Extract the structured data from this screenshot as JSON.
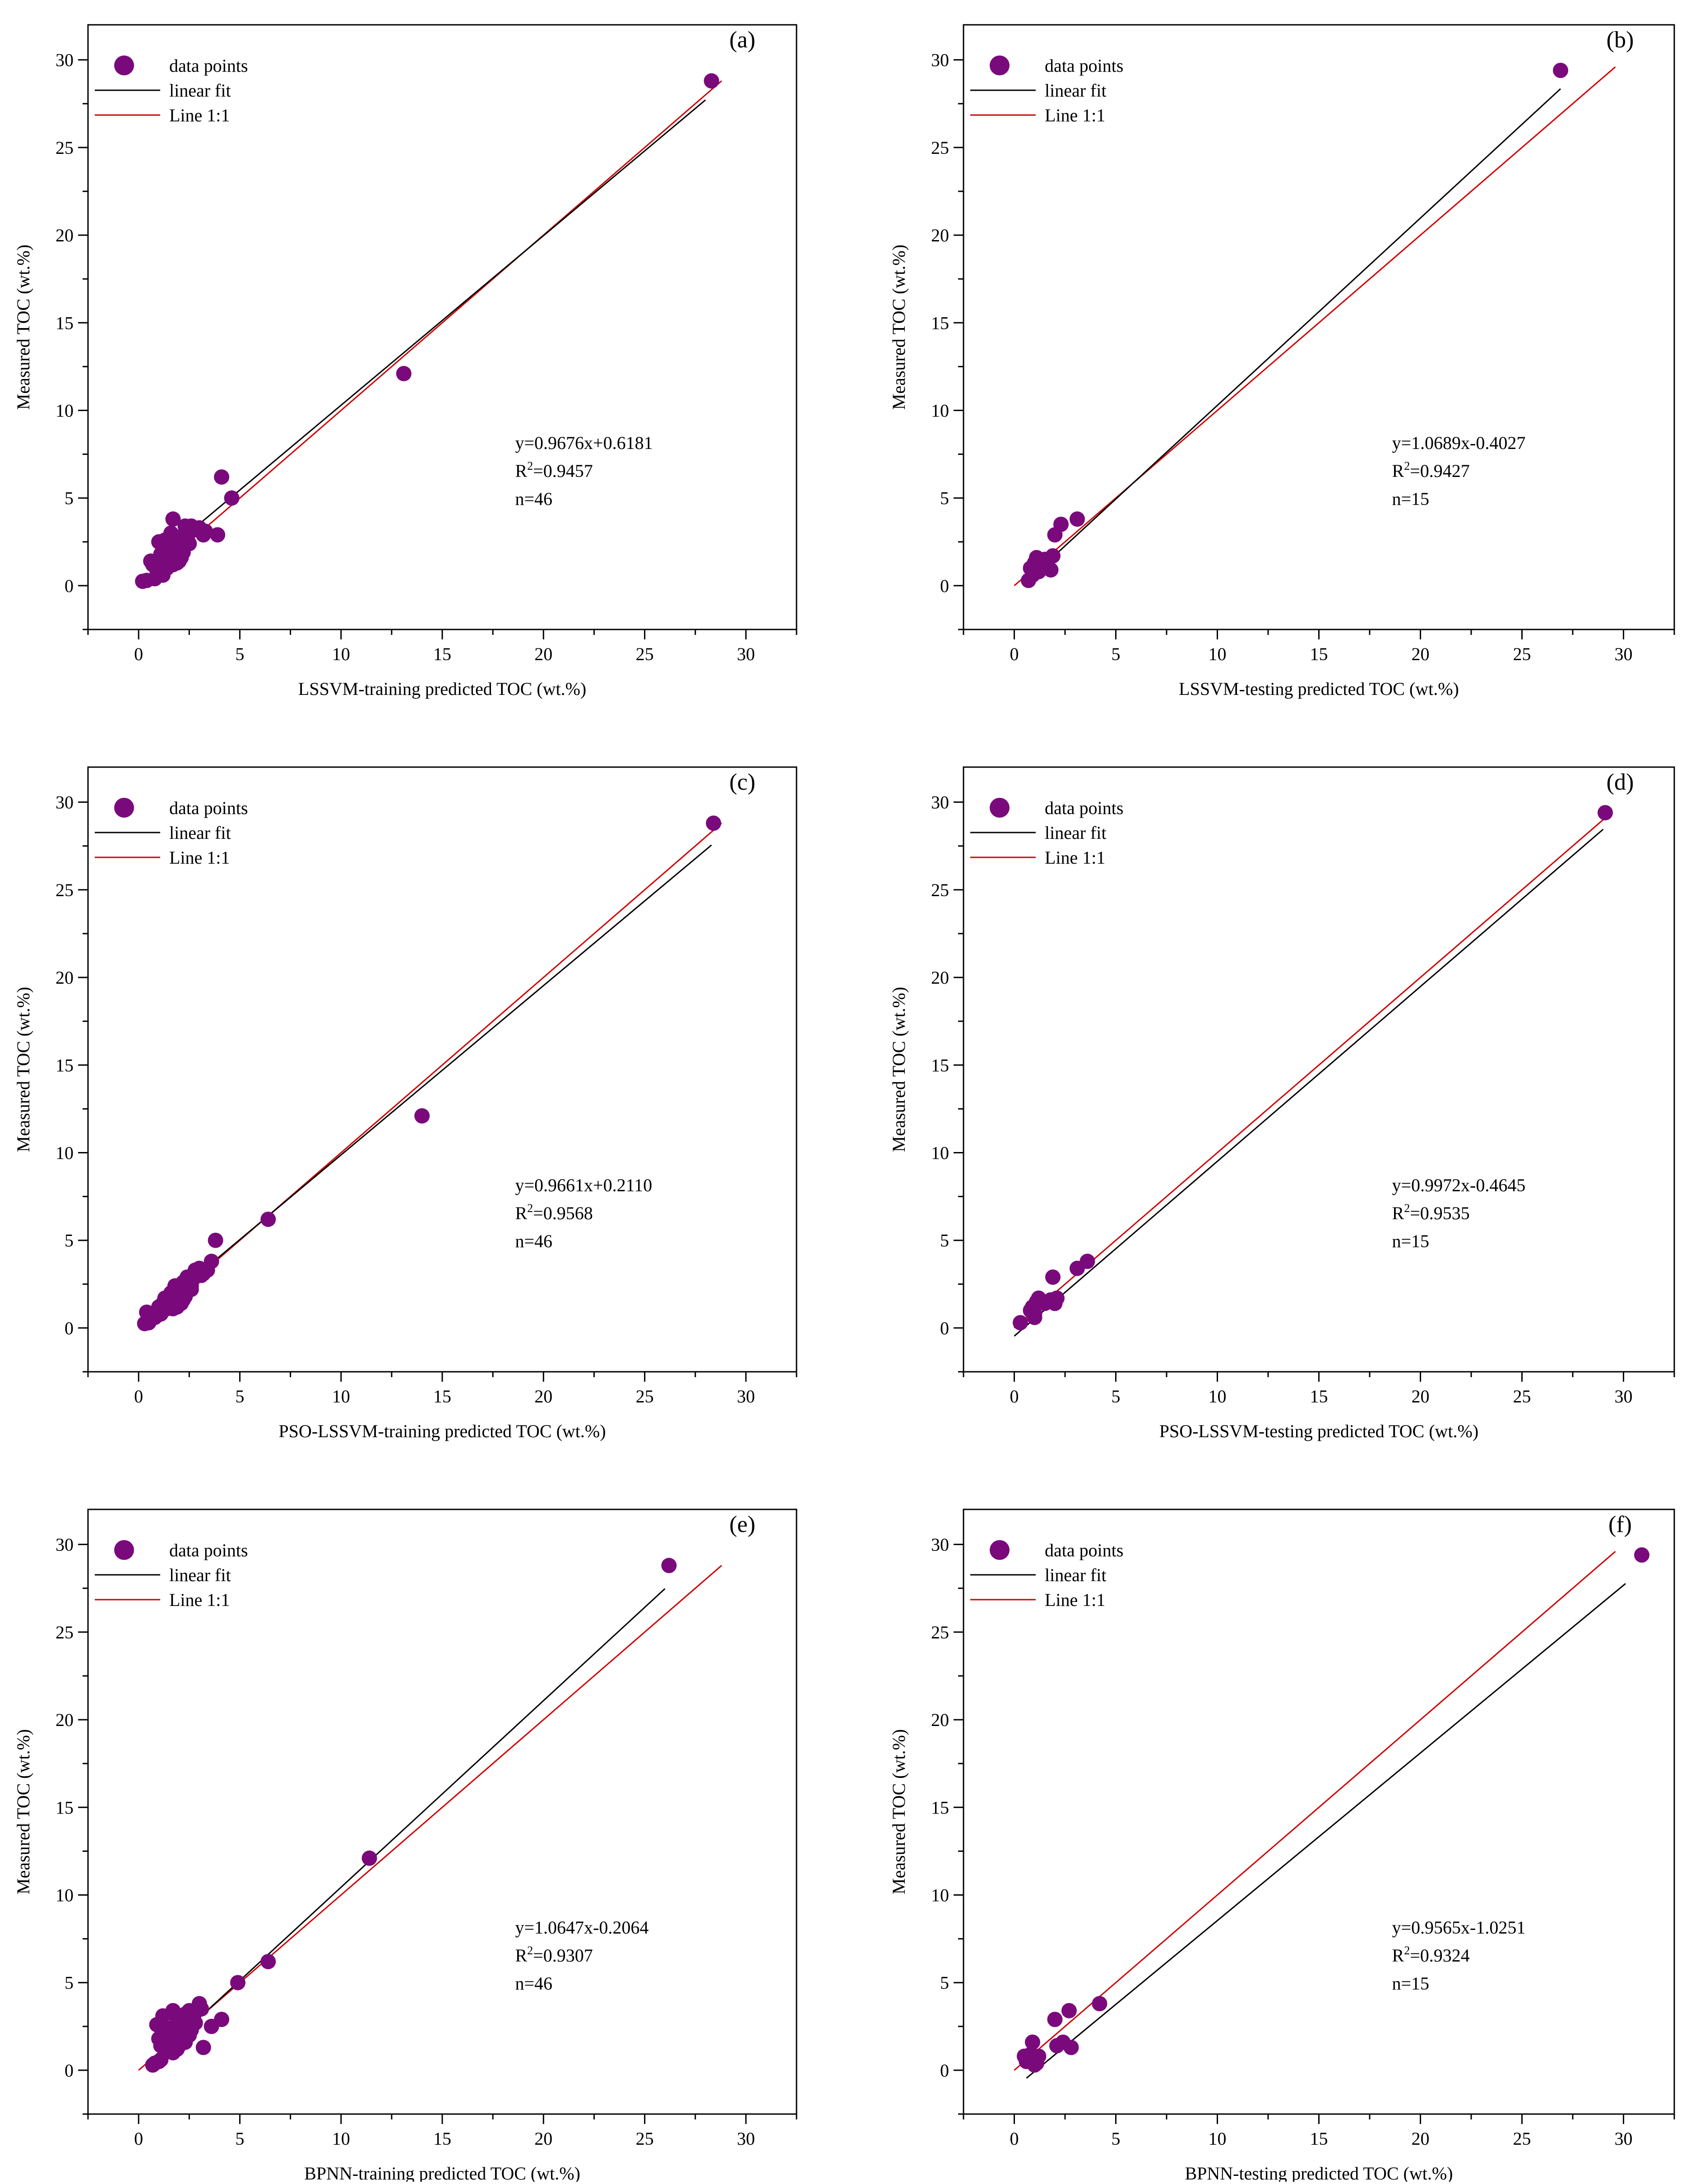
{
  "figure_title": "",
  "legend_labels": {
    "points": "data points",
    "fit": "linear fit",
    "one_to_one": "Line 1:1"
  },
  "colors": {
    "points": "#7a0a7c",
    "fit": "#000000",
    "one_to_one": "#d00000",
    "axis": "#000000",
    "background": "#ffffff"
  },
  "chart_data": [
    {
      "id": "a",
      "tag": "(a)",
      "type": "scatter",
      "title": "",
      "xlabel": "LSSVM-training predicted TOC (wt.%)",
      "ylabel": "Measured TOC (wt.%)",
      "xlim": [
        -2.5,
        32.5
      ],
      "ylim": [
        -2.5,
        32
      ],
      "xticks": [
        0,
        5,
        10,
        15,
        20,
        25,
        30
      ],
      "yticks": [
        0,
        5,
        10,
        15,
        20,
        25,
        30
      ],
      "fit": {
        "slope": 0.9676,
        "intercept": 0.6181,
        "x_range": [
          0.5,
          28.0
        ]
      },
      "one_to_one_range": [
        0,
        28.8
      ],
      "stats": {
        "equation": "y=0.9676x+0.6181",
        "r2_prefix": "R",
        "r2_sup": "2",
        "r2_value": "=0.9457",
        "n": "n=46"
      },
      "points": {
        "x": [
          0.2,
          0.4,
          0.6,
          0.8,
          0.9,
          1.0,
          1.1,
          1.2,
          1.3,
          1.4,
          1.5,
          1.6,
          1.7,
          1.8,
          1.9,
          2.0,
          2.1,
          2.2,
          2.4,
          2.6,
          2.8,
          3.0,
          3.2,
          3.3,
          3.9,
          4.1,
          4.6,
          13.1,
          28.3,
          1.0,
          1.2,
          1.4,
          1.6,
          1.8,
          2.0,
          0.7,
          0.9,
          1.1,
          1.3,
          1.5,
          1.7,
          2.3,
          2.5,
          2.7,
          1.9,
          2.1
        ],
        "y": [
          0.25,
          0.3,
          1.4,
          0.4,
          1.2,
          2.5,
          1.8,
          0.6,
          2.6,
          1.0,
          2.4,
          3.0,
          3.8,
          2.1,
          1.3,
          2.3,
          1.6,
          1.9,
          2.7,
          3.4,
          3.2,
          3.3,
          2.9,
          3.1,
          2.9,
          6.2,
          5.0,
          12.1,
          28.8,
          1.5,
          2.2,
          1.1,
          1.7,
          2.8,
          1.4,
          1.2,
          0.9,
          1.6,
          2.0,
          1.9,
          1.2,
          3.4,
          2.4,
          3.3,
          2.0,
          1.8
        ]
      }
    },
    {
      "id": "b",
      "tag": "(b)",
      "type": "scatter",
      "title": "",
      "xlabel": "LSSVM-testing predicted TOC (wt.%)",
      "ylabel": "Measured TOC (wt.%)",
      "xlim": [
        -2.5,
        32.5
      ],
      "ylim": [
        -2.5,
        32
      ],
      "xticks": [
        0,
        5,
        10,
        15,
        20,
        25,
        30
      ],
      "yticks": [
        0,
        5,
        10,
        15,
        20,
        25,
        30
      ],
      "fit": {
        "slope": 1.0689,
        "intercept": -0.4027,
        "x_range": [
          0.6,
          26.9
        ]
      },
      "one_to_one_range": [
        0,
        29.6
      ],
      "stats": {
        "equation": "y=1.0689x-0.4027",
        "r2_prefix": "R",
        "r2_sup": "2",
        "r2_value": "=0.9427",
        "n": "n=15"
      },
      "points": {
        "x": [
          0.7,
          0.8,
          0.9,
          1.0,
          1.1,
          1.2,
          1.3,
          1.5,
          1.8,
          1.9,
          2.0,
          2.3,
          3.1,
          1.2,
          26.9
        ],
        "y": [
          0.3,
          1.0,
          0.6,
          1.3,
          1.6,
          0.8,
          1.2,
          1.5,
          0.9,
          1.7,
          2.9,
          3.5,
          3.8,
          1.4,
          29.4
        ]
      }
    },
    {
      "id": "c",
      "tag": "(c)",
      "type": "scatter",
      "title": "",
      "xlabel": "PSO-LSSVM-training predicted TOC (wt.%)",
      "ylabel": "Measured TOC (wt.%)",
      "xlim": [
        -2.5,
        32.5
      ],
      "ylim": [
        -2.5,
        32
      ],
      "xticks": [
        0,
        5,
        10,
        15,
        20,
        25,
        30
      ],
      "yticks": [
        0,
        5,
        10,
        15,
        20,
        25,
        30
      ],
      "fit": {
        "slope": 0.9661,
        "intercept": 0.211,
        "x_range": [
          0.8,
          28.3
        ]
      },
      "one_to_one_range": [
        0,
        28.8
      ],
      "stats": {
        "equation": "y=0.9661x+0.2110",
        "r2_prefix": "R",
        "r2_sup": "2",
        "r2_value": "=0.9568",
        "n": "n=46"
      },
      "points": {
        "x": [
          0.3,
          0.4,
          0.5,
          0.8,
          1.0,
          1.1,
          1.2,
          1.3,
          1.4,
          1.5,
          1.6,
          1.7,
          1.8,
          1.9,
          2.0,
          2.1,
          2.2,
          2.3,
          2.4,
          2.5,
          2.6,
          2.8,
          3.0,
          3.2,
          3.4,
          3.6,
          3.8,
          6.4,
          14.0,
          28.4,
          1.2,
          1.5,
          1.8,
          2.1,
          2.4,
          1.9,
          2.2,
          2.6,
          0.9,
          1.3,
          1.7,
          2.0,
          2.3,
          2.7,
          3.1,
          1.0
        ],
        "y": [
          0.25,
          0.9,
          0.3,
          0.6,
          1.2,
          0.8,
          1.4,
          1.7,
          1.1,
          1.5,
          2.0,
          1.3,
          2.4,
          1.6,
          2.1,
          1.4,
          2.6,
          1.8,
          2.9,
          2.5,
          2.2,
          3.3,
          3.4,
          3.1,
          3.3,
          3.8,
          5.0,
          6.2,
          12.1,
          28.8,
          1.0,
          1.3,
          1.9,
          2.3,
          2.7,
          1.2,
          1.6,
          2.4,
          0.7,
          1.5,
          1.1,
          1.7,
          2.0,
          2.8,
          3.0,
          0.9
        ]
      }
    },
    {
      "id": "d",
      "tag": "(d)",
      "type": "scatter",
      "title": "",
      "xlabel": "PSO-LSSVM-testing predicted TOC (wt.%)",
      "ylabel": "Measured TOC (wt.%)",
      "xlim": [
        -2.5,
        32.5
      ],
      "ylim": [
        -2.5,
        32
      ],
      "xticks": [
        0,
        5,
        10,
        15,
        20,
        25,
        30
      ],
      "yticks": [
        0,
        5,
        10,
        15,
        20,
        25,
        30
      ],
      "fit": {
        "slope": 0.9972,
        "intercept": -0.4645,
        "x_range": [
          0.0,
          29.0
        ]
      },
      "one_to_one_range": [
        0,
        29.4
      ],
      "stats": {
        "equation": "y=0.9972x-0.4645",
        "r2_prefix": "R",
        "r2_sup": "2",
        "r2_value": "=0.9535",
        "n": "n=15"
      },
      "points": {
        "x": [
          0.3,
          0.8,
          0.9,
          1.0,
          1.1,
          1.2,
          1.5,
          1.8,
          1.9,
          2.0,
          2.1,
          3.1,
          3.6,
          1.0,
          29.1
        ],
        "y": [
          0.3,
          1.0,
          1.2,
          0.6,
          1.5,
          1.7,
          1.4,
          1.6,
          2.9,
          1.4,
          1.7,
          3.4,
          3.8,
          0.8,
          29.4
        ]
      }
    },
    {
      "id": "e",
      "tag": "(e)",
      "type": "scatter",
      "title": "",
      "xlabel": "BPNN-training predicted TOC (wt.%)",
      "ylabel": "Measured TOC (wt.%)",
      "xlim": [
        -2.5,
        32.5
      ],
      "ylim": [
        -2.5,
        32
      ],
      "xticks": [
        0,
        5,
        10,
        15,
        20,
        25,
        30
      ],
      "yticks": [
        0,
        5,
        10,
        15,
        20,
        25,
        30
      ],
      "fit": {
        "slope": 1.0647,
        "intercept": -0.2064,
        "x_range": [
          1.0,
          26.0
        ]
      },
      "one_to_one_range": [
        0,
        28.8
      ],
      "stats": {
        "equation": "y=1.0647x-0.2064",
        "r2_prefix": "R",
        "r2_sup": "2",
        "r2_value": "=0.9307",
        "n": "n=46"
      },
      "points": {
        "x": [
          0.7,
          0.9,
          1.0,
          1.1,
          1.2,
          1.3,
          1.4,
          1.5,
          1.6,
          1.7,
          1.8,
          1.9,
          2.0,
          2.1,
          2.2,
          2.3,
          2.4,
          2.5,
          2.6,
          2.8,
          3.0,
          3.2,
          3.6,
          4.1,
          4.9,
          6.4,
          11.4,
          26.2,
          1.0,
          1.3,
          1.6,
          1.9,
          2.2,
          2.5,
          2.8,
          1.1,
          1.4,
          1.7,
          2.0,
          2.3,
          0.8,
          1.2,
          1.8,
          2.1,
          2.6,
          3.1
        ],
        "y": [
          0.3,
          2.6,
          0.5,
          1.4,
          3.1,
          2.0,
          1.1,
          2.2,
          1.7,
          3.4,
          1.9,
          2.8,
          1.4,
          2.5,
          1.8,
          3.2,
          2.1,
          3.4,
          2.3,
          2.7,
          3.8,
          1.3,
          2.5,
          2.9,
          5.0,
          6.2,
          12.1,
          28.8,
          1.8,
          1.5,
          2.4,
          1.2,
          2.9,
          2.0,
          3.3,
          0.6,
          2.4,
          1.0,
          2.7,
          1.6,
          0.4,
          1.9,
          2.2,
          3.0,
          2.6,
          3.5
        ]
      }
    },
    {
      "id": "f",
      "tag": "(f)",
      "type": "scatter",
      "title": "",
      "xlabel": "BPNN-testing predicted TOC (wt.%)",
      "ylabel": "Measured TOC (wt.%)",
      "xlim": [
        -2.5,
        32.5
      ],
      "ylim": [
        -2.5,
        32
      ],
      "xticks": [
        0,
        5,
        10,
        15,
        20,
        25,
        30
      ],
      "yticks": [
        0,
        5,
        10,
        15,
        20,
        25,
        30
      ],
      "fit": {
        "slope": 0.9565,
        "intercept": -1.0251,
        "x_range": [
          0.6,
          30.1
        ]
      },
      "one_to_one_range": [
        0,
        29.6
      ],
      "stats": {
        "equation": "y=0.9565x-1.0251",
        "r2_prefix": "R",
        "r2_sup": "2",
        "r2_value": "=0.9324",
        "n": "n=15"
      },
      "points": {
        "x": [
          0.5,
          0.6,
          0.8,
          0.9,
          1.0,
          1.1,
          1.2,
          2.0,
          2.1,
          2.4,
          2.7,
          2.8,
          4.2,
          1.0,
          30.9
        ],
        "y": [
          0.8,
          0.5,
          0.9,
          1.6,
          0.6,
          0.4,
          0.8,
          2.9,
          1.4,
          1.6,
          3.4,
          1.3,
          3.8,
          0.3,
          29.4
        ]
      }
    }
  ]
}
